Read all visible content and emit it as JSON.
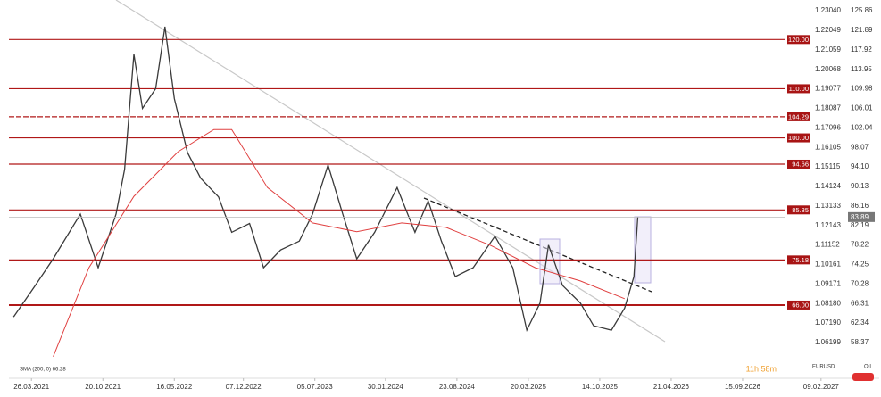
{
  "chart_data": {
    "type": "line",
    "y2_name": "EURUSD",
    "timer": "11h 58m",
    "xlim": [
      0,
      106
    ],
    "xticks": [
      {
        "value": 2.9,
        "label": "26.03.2021"
      },
      {
        "value": 12.1,
        "label": "20.10.2021"
      },
      {
        "value": 21.3,
        "label": "16.05.2022"
      },
      {
        "value": 30.2,
        "label": "07.12.2022"
      },
      {
        "value": 39.4,
        "label": "05.07.2023"
      },
      {
        "value": 48.5,
        "label": "30.01.2024"
      },
      {
        "value": 57.7,
        "label": "23.08.2024"
      },
      {
        "value": 66.9,
        "label": "20.03.2025"
      },
      {
        "value": 76.1,
        "label": "14.10.2025"
      },
      {
        "value": 85.3,
        "label": "21.04.2026"
      },
      {
        "value": 94.5,
        "label": "15.09.2026"
      },
      {
        "value": 104.6,
        "label": "09.02.2027"
      }
    ],
    "ylim": [
      51.84,
      128.04
    ],
    "yticks": [
      125.86,
      121.89,
      117.92,
      113.95,
      109.98,
      106.01,
      102.04,
      98.07,
      {
        "value": 94.1,
        "label": "94.10"
      },
      90.13,
      86.16,
      82.19,
      78.22,
      74.25,
      70.28,
      66.31,
      62.34,
      58.37
    ],
    "y2lim": [
      1.0457,
      1.23584
    ],
    "y2ticks": [
      {
        "value": 1.2304,
        "label": "1.23040"
      },
      1.22049,
      1.21059,
      1.20068,
      1.19077,
      1.18087,
      1.17096,
      1.16105,
      1.15115,
      1.14124,
      1.13133,
      1.12143,
      1.11152,
      1.10161,
      1.09171,
      {
        "value": 1.0818,
        "label": "1.08180"
      },
      {
        "value": 1.0719,
        "label": "1.07190"
      },
      1.06199
    ],
    "levels": [
      {
        "value": 120,
        "label": "120.00"
      },
      {
        "value": 110,
        "label": "110.00"
      },
      {
        "value": 104.29,
        "label": "104.29"
      },
      {
        "value": 100,
        "label": "100.00"
      },
      {
        "value": 94.66,
        "label": "94.66"
      },
      {
        "value": 85.35,
        "label": "85.35"
      },
      {
        "value": 75.18,
        "label": "75.18"
      },
      {
        "value": 66,
        "label": "66.00"
      }
    ],
    "current_price": 83.89,
    "series": [
      {
        "name": "OIL",
        "color": "#3a3a3a",
        "x": [
          0.6,
          3.4,
          5.7,
          9.2,
          11.5,
          13.8,
          14.9,
          16.1,
          17.2,
          18.9,
          20.1,
          21.3,
          23,
          24.7,
          27,
          28.7,
          31,
          32.8,
          35,
          37.4,
          39.1,
          41.1,
          43,
          44.8,
          47.1,
          50,
          52.3,
          54,
          55.7,
          57.5,
          59.8,
          62.6,
          64.9,
          66.7,
          68.4,
          69.5,
          71.3,
          73.6,
          75.3,
          77.6,
          79.3,
          80.5,
          81
        ],
        "values": [
          63.6,
          70,
          75.4,
          84.5,
          73.6,
          84.5,
          93.6,
          117,
          106,
          110,
          122.6,
          108,
          97,
          91.8,
          88,
          80.8,
          82.6,
          73.6,
          77.2,
          79,
          84.5,
          94.5,
          84.5,
          75.4,
          80.8,
          89.9,
          80.8,
          87.2,
          79,
          71.8,
          73.6,
          80,
          73.6,
          60.9,
          66.4,
          78.2,
          70,
          66.4,
          61.8,
          60.9,
          65.4,
          71.8,
          83.89
        ]
      },
      {
        "name": "SMA (200, 0) 66.28",
        "color": "#e04040",
        "x": [
          5.7,
          10.3,
          16.1,
          21.8,
          26.4,
          28.7,
          33.3,
          39.1,
          44.8,
          50.6,
          56.3,
          62.1,
          67.8,
          73.6,
          79.3
        ],
        "values": [
          55.5,
          73.6,
          88.1,
          97.2,
          101.7,
          101.7,
          89.9,
          82.7,
          80.9,
          82.7,
          81.8,
          78.1,
          73.6,
          70.9,
          67.3
        ]
      }
    ]
  }
}
